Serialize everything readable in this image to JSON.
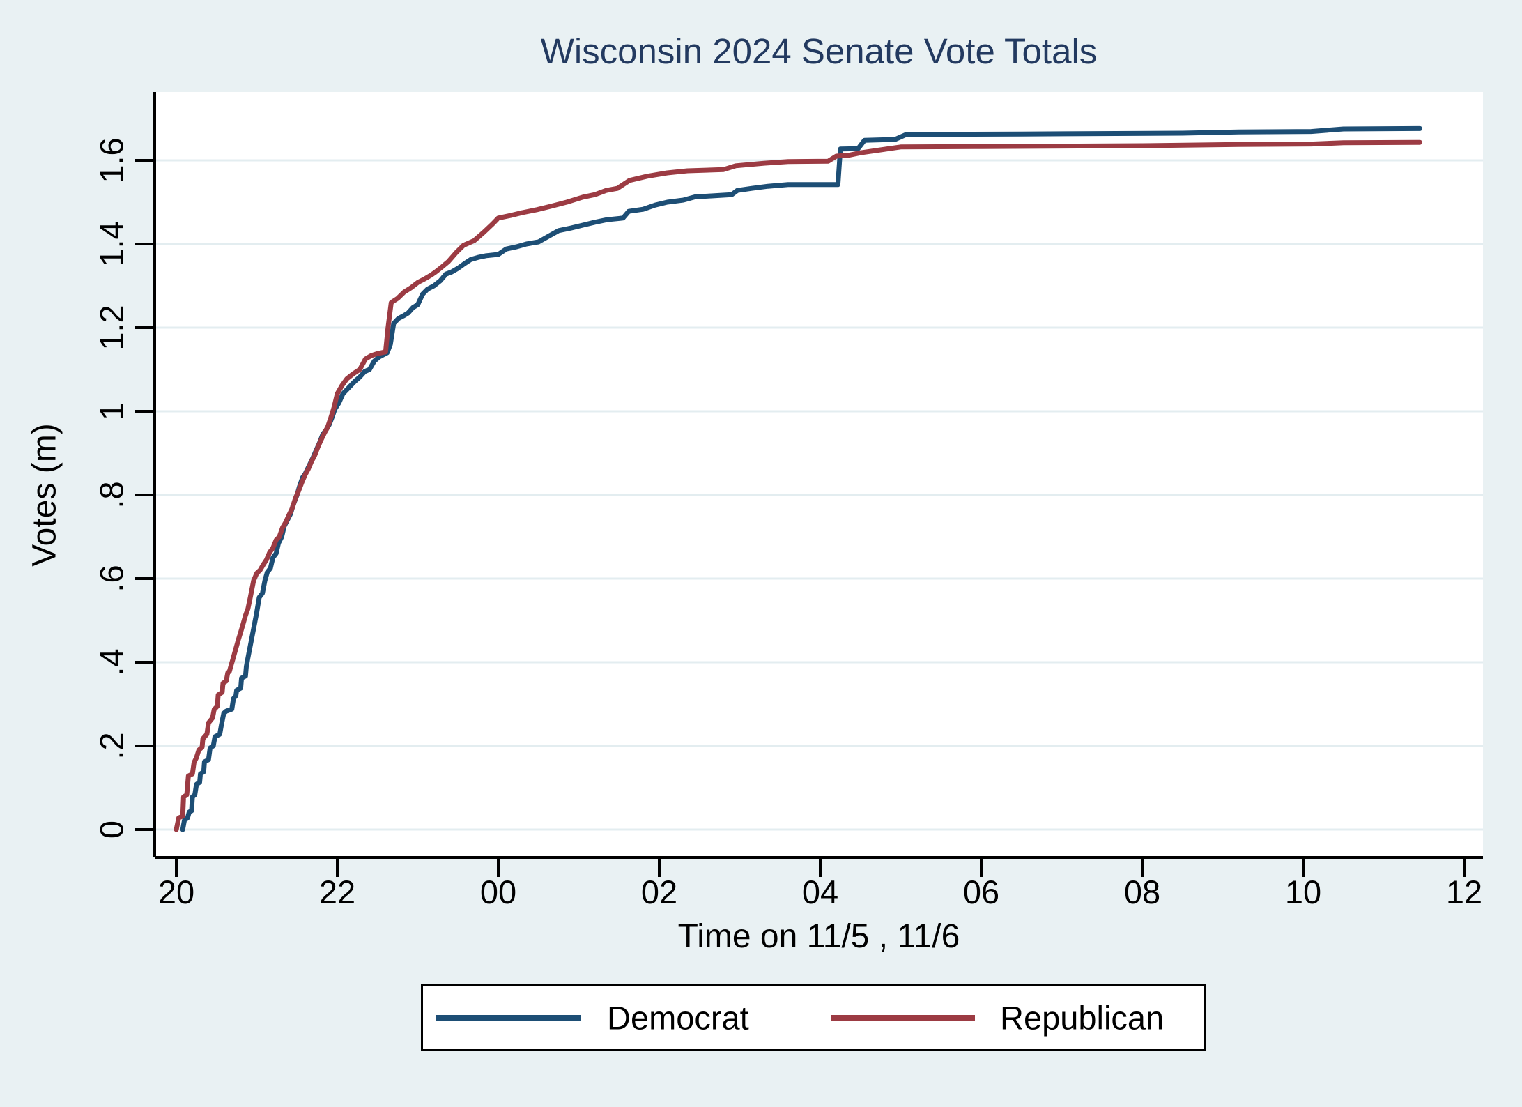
{
  "title": "Wisconsin 2024 Senate Vote Totals",
  "axes": {
    "x_title": "Time on 11/5 , 11/6",
    "y_title": "Votes (m)",
    "x_tick_labels": [
      "20",
      "22",
      "00",
      "02",
      "04",
      "06",
      "08",
      "10",
      "12"
    ],
    "y_tick_labels": [
      "0",
      ".2",
      ".4",
      ".6",
      ".8",
      "1",
      "1.2",
      "1.4",
      "1.6"
    ]
  },
  "legend": {
    "entries": [
      {
        "label": "Democrat",
        "color": "#1d4e75"
      },
      {
        "label": "Republican",
        "color": "#9c3b43"
      }
    ]
  },
  "colors": {
    "page_background": "#e9f1f3",
    "plot_background": "#ffffff",
    "gridline": "#e3edf0",
    "axis": "#000000",
    "title": "#233a60",
    "democrat": "#1d4e75",
    "republican": "#9c3b43"
  },
  "chart_data": {
    "type": "line",
    "title": "Wisconsin 2024 Senate Vote Totals",
    "xlabel": "Time on 11/5 , 11/6",
    "ylabel": "Votes (m)",
    "x_unit": "hours since 20:00 on 11/5",
    "x_ticks": [
      0,
      2,
      4,
      6,
      8,
      10,
      12,
      14,
      16
    ],
    "x_tick_labels": [
      "20",
      "22",
      "00",
      "02",
      "04",
      "06",
      "08",
      "10",
      "12"
    ],
    "y_ticks": [
      0,
      0.2,
      0.4,
      0.6,
      0.8,
      1.0,
      1.2,
      1.4,
      1.6
    ],
    "y_tick_labels": [
      "0",
      ".2",
      ".4",
      ".6",
      ".8",
      "1",
      "1.2",
      "1.4",
      "1.6"
    ],
    "xlim": [
      -0.27,
      16.23
    ],
    "ylim": [
      -0.067,
      1.763
    ],
    "grid": "horizontal",
    "legend_position": "bottom-outside-boxed",
    "series": [
      {
        "name": "Democrat",
        "color": "#1d4e75",
        "points": [
          [
            0.08,
            0.0
          ],
          [
            0.1,
            0.022
          ],
          [
            0.14,
            0.028
          ],
          [
            0.16,
            0.042
          ],
          [
            0.19,
            0.045
          ],
          [
            0.2,
            0.078
          ],
          [
            0.23,
            0.083
          ],
          [
            0.25,
            0.108
          ],
          [
            0.29,
            0.113
          ],
          [
            0.3,
            0.133
          ],
          [
            0.34,
            0.138
          ],
          [
            0.35,
            0.162
          ],
          [
            0.4,
            0.167
          ],
          [
            0.42,
            0.195
          ],
          [
            0.46,
            0.2
          ],
          [
            0.48,
            0.222
          ],
          [
            0.54,
            0.228
          ],
          [
            0.56,
            0.25
          ],
          [
            0.59,
            0.278
          ],
          [
            0.62,
            0.283
          ],
          [
            0.69,
            0.288
          ],
          [
            0.71,
            0.313
          ],
          [
            0.74,
            0.32
          ],
          [
            0.75,
            0.333
          ],
          [
            0.8,
            0.338
          ],
          [
            0.81,
            0.362
          ],
          [
            0.86,
            0.367
          ],
          [
            0.87,
            0.39
          ],
          [
            0.9,
            0.42
          ],
          [
            0.93,
            0.45
          ],
          [
            0.96,
            0.48
          ],
          [
            1.0,
            0.52
          ],
          [
            1.03,
            0.555
          ],
          [
            1.07,
            0.565
          ],
          [
            1.1,
            0.595
          ],
          [
            1.13,
            0.615
          ],
          [
            1.17,
            0.625
          ],
          [
            1.2,
            0.65
          ],
          [
            1.24,
            0.66
          ],
          [
            1.27,
            0.685
          ],
          [
            1.31,
            0.7
          ],
          [
            1.34,
            0.725
          ],
          [
            1.38,
            0.74
          ],
          [
            1.42,
            0.755
          ],
          [
            1.45,
            0.775
          ],
          [
            1.5,
            0.8
          ],
          [
            1.53,
            0.82
          ],
          [
            1.57,
            0.842
          ],
          [
            1.6,
            0.85
          ],
          [
            1.63,
            0.862
          ],
          [
            1.67,
            0.878
          ],
          [
            1.7,
            0.89
          ],
          [
            1.74,
            0.908
          ],
          [
            1.78,
            0.925
          ],
          [
            1.82,
            0.945
          ],
          [
            1.86,
            0.955
          ],
          [
            1.9,
            0.968
          ],
          [
            1.94,
            0.988
          ],
          [
            1.97,
            1.005
          ],
          [
            2.02,
            1.02
          ],
          [
            2.07,
            1.042
          ],
          [
            2.12,
            1.052
          ],
          [
            2.17,
            1.062
          ],
          [
            2.22,
            1.072
          ],
          [
            2.28,
            1.082
          ],
          [
            2.34,
            1.095
          ],
          [
            2.4,
            1.1
          ],
          [
            2.46,
            1.12
          ],
          [
            2.52,
            1.13
          ],
          [
            2.57,
            1.135
          ],
          [
            2.62,
            1.14
          ],
          [
            2.66,
            1.16
          ],
          [
            2.7,
            1.21
          ],
          [
            2.76,
            1.222
          ],
          [
            2.82,
            1.228
          ],
          [
            2.88,
            1.235
          ],
          [
            2.94,
            1.248
          ],
          [
            3.0,
            1.255
          ],
          [
            3.06,
            1.28
          ],
          [
            3.12,
            1.292
          ],
          [
            3.2,
            1.3
          ],
          [
            3.28,
            1.312
          ],
          [
            3.35,
            1.328
          ],
          [
            3.42,
            1.333
          ],
          [
            3.5,
            1.342
          ],
          [
            3.58,
            1.353
          ],
          [
            3.66,
            1.363
          ],
          [
            3.75,
            1.368
          ],
          [
            3.85,
            1.372
          ],
          [
            4.0,
            1.375
          ],
          [
            4.1,
            1.388
          ],
          [
            4.22,
            1.393
          ],
          [
            4.35,
            1.4
          ],
          [
            4.5,
            1.405
          ],
          [
            4.62,
            1.418
          ],
          [
            4.75,
            1.432
          ],
          [
            4.9,
            1.438
          ],
          [
            5.05,
            1.445
          ],
          [
            5.2,
            1.452
          ],
          [
            5.35,
            1.458
          ],
          [
            5.55,
            1.462
          ],
          [
            5.62,
            1.478
          ],
          [
            5.8,
            1.483
          ],
          [
            5.95,
            1.493
          ],
          [
            6.1,
            1.5
          ],
          [
            6.3,
            1.505
          ],
          [
            6.45,
            1.513
          ],
          [
            6.65,
            1.515
          ],
          [
            6.9,
            1.518
          ],
          [
            6.97,
            1.528
          ],
          [
            7.15,
            1.533
          ],
          [
            7.35,
            1.538
          ],
          [
            7.6,
            1.542
          ],
          [
            8.22,
            1.542
          ],
          [
            8.25,
            1.627
          ],
          [
            8.47,
            1.628
          ],
          [
            8.55,
            1.648
          ],
          [
            8.93,
            1.65
          ],
          [
            9.07,
            1.662
          ],
          [
            10.5,
            1.663
          ],
          [
            12.5,
            1.665
          ],
          [
            13.2,
            1.668
          ],
          [
            14.1,
            1.669
          ],
          [
            14.5,
            1.675
          ],
          [
            15.45,
            1.676
          ]
        ]
      },
      {
        "name": "Republican",
        "color": "#9c3b43",
        "points": [
          [
            0.0,
            0.0
          ],
          [
            0.03,
            0.028
          ],
          [
            0.08,
            0.032
          ],
          [
            0.09,
            0.078
          ],
          [
            0.13,
            0.083
          ],
          [
            0.15,
            0.128
          ],
          [
            0.2,
            0.133
          ],
          [
            0.22,
            0.16
          ],
          [
            0.25,
            0.172
          ],
          [
            0.28,
            0.19
          ],
          [
            0.32,
            0.197
          ],
          [
            0.33,
            0.217
          ],
          [
            0.38,
            0.228
          ],
          [
            0.4,
            0.255
          ],
          [
            0.45,
            0.267
          ],
          [
            0.47,
            0.287
          ],
          [
            0.51,
            0.295
          ],
          [
            0.52,
            0.322
          ],
          [
            0.57,
            0.328
          ],
          [
            0.58,
            0.35
          ],
          [
            0.62,
            0.355
          ],
          [
            0.64,
            0.375
          ],
          [
            0.66,
            0.378
          ],
          [
            0.68,
            0.392
          ],
          [
            0.71,
            0.412
          ],
          [
            0.74,
            0.433
          ],
          [
            0.77,
            0.453
          ],
          [
            0.8,
            0.472
          ],
          [
            0.83,
            0.492
          ],
          [
            0.86,
            0.512
          ],
          [
            0.89,
            0.528
          ],
          [
            0.92,
            0.556
          ],
          [
            0.96,
            0.595
          ],
          [
            1.0,
            0.613
          ],
          [
            1.04,
            0.62
          ],
          [
            1.08,
            0.633
          ],
          [
            1.12,
            0.645
          ],
          [
            1.16,
            0.663
          ],
          [
            1.2,
            0.673
          ],
          [
            1.24,
            0.692
          ],
          [
            1.28,
            0.7
          ],
          [
            1.32,
            0.722
          ],
          [
            1.36,
            0.735
          ],
          [
            1.4,
            0.752
          ],
          [
            1.44,
            0.768
          ],
          [
            1.48,
            0.792
          ],
          [
            1.52,
            0.81
          ],
          [
            1.56,
            0.83
          ],
          [
            1.6,
            0.848
          ],
          [
            1.64,
            0.862
          ],
          [
            1.68,
            0.88
          ],
          [
            1.72,
            0.895
          ],
          [
            1.76,
            0.915
          ],
          [
            1.8,
            0.932
          ],
          [
            1.84,
            0.948
          ],
          [
            1.88,
            0.962
          ],
          [
            1.92,
            0.985
          ],
          [
            1.96,
            1.01
          ],
          [
            2.0,
            1.042
          ],
          [
            2.06,
            1.062
          ],
          [
            2.12,
            1.078
          ],
          [
            2.2,
            1.09
          ],
          [
            2.28,
            1.1
          ],
          [
            2.35,
            1.125
          ],
          [
            2.42,
            1.133
          ],
          [
            2.5,
            1.138
          ],
          [
            2.6,
            1.142
          ],
          [
            2.63,
            1.2
          ],
          [
            2.67,
            1.26
          ],
          [
            2.75,
            1.27
          ],
          [
            2.83,
            1.285
          ],
          [
            2.92,
            1.296
          ],
          [
            3.0,
            1.308
          ],
          [
            3.09,
            1.317
          ],
          [
            3.16,
            1.325
          ],
          [
            3.22,
            1.333
          ],
          [
            3.3,
            1.345
          ],
          [
            3.38,
            1.358
          ],
          [
            3.48,
            1.38
          ],
          [
            3.57,
            1.397
          ],
          [
            3.7,
            1.408
          ],
          [
            3.82,
            1.428
          ],
          [
            3.93,
            1.448
          ],
          [
            4.0,
            1.462
          ],
          [
            4.15,
            1.468
          ],
          [
            4.3,
            1.475
          ],
          [
            4.48,
            1.482
          ],
          [
            4.65,
            1.49
          ],
          [
            4.85,
            1.5
          ],
          [
            5.05,
            1.512
          ],
          [
            5.2,
            1.518
          ],
          [
            5.34,
            1.528
          ],
          [
            5.48,
            1.533
          ],
          [
            5.63,
            1.552
          ],
          [
            5.85,
            1.562
          ],
          [
            6.1,
            1.57
          ],
          [
            6.35,
            1.575
          ],
          [
            6.8,
            1.578
          ],
          [
            6.95,
            1.587
          ],
          [
            7.3,
            1.593
          ],
          [
            7.6,
            1.597
          ],
          [
            8.1,
            1.598
          ],
          [
            8.2,
            1.61
          ],
          [
            8.35,
            1.612
          ],
          [
            8.5,
            1.618
          ],
          [
            8.75,
            1.625
          ],
          [
            9.0,
            1.632
          ],
          [
            10.0,
            1.633
          ],
          [
            12.0,
            1.635
          ],
          [
            13.2,
            1.638
          ],
          [
            14.1,
            1.639
          ],
          [
            14.5,
            1.642
          ],
          [
            15.45,
            1.643
          ]
        ]
      }
    ]
  }
}
